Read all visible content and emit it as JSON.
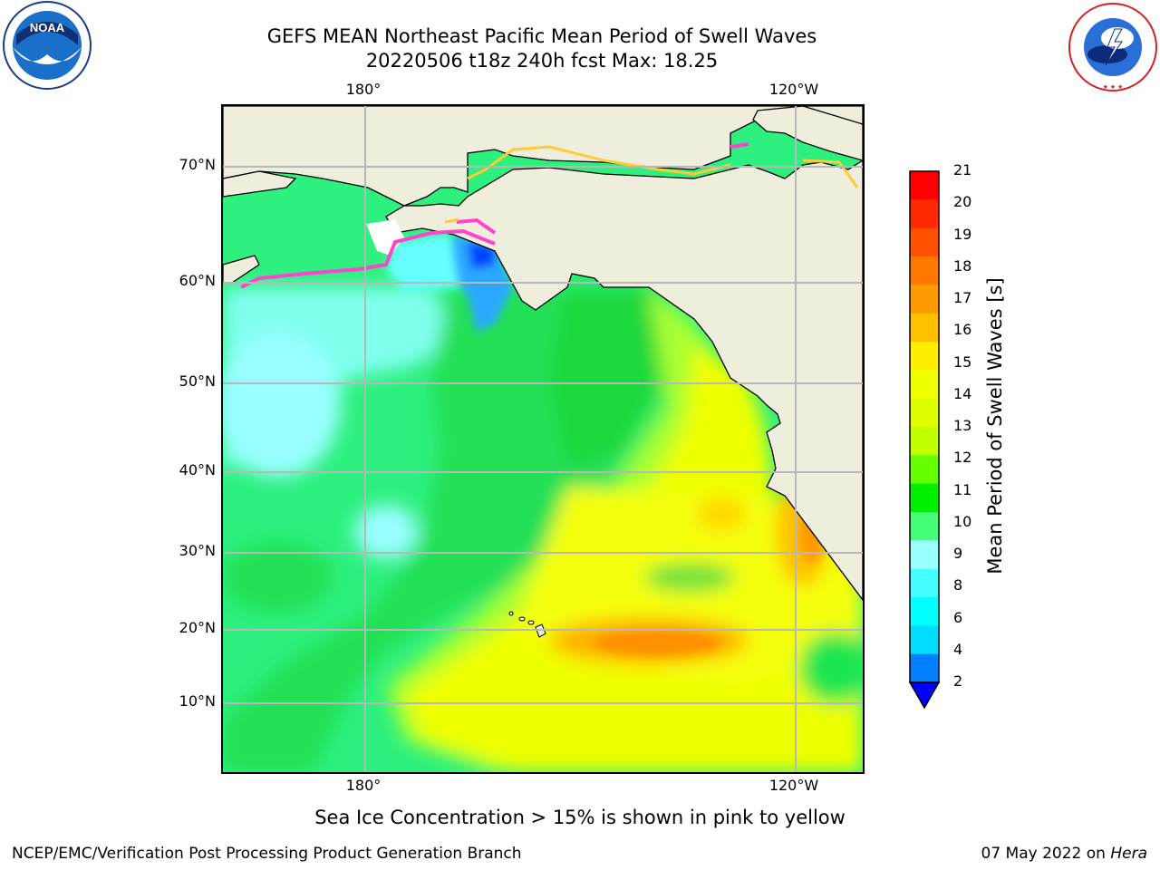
{
  "title": {
    "line1": "GEFS MEAN Northeast Pacific Mean Period of Swell Waves",
    "line2": "20220506 t18z 240h fcst   Max: 18.25"
  },
  "map": {
    "lon_labels": [
      "180°",
      "120°W"
    ],
    "lat_labels": [
      "70°N",
      "60°N",
      "50°N",
      "40°N",
      "30°N",
      "20°N",
      "10°N"
    ],
    "land_color": "#efeedd",
    "grid_color": "#b8b8b8"
  },
  "colorbar": {
    "label": "Mean Period of Swell Waves [s]",
    "ticks": [
      "21",
      "20",
      "19",
      "18",
      "17",
      "16",
      "15",
      "14",
      "13",
      "12",
      "11",
      "10",
      "9",
      "8",
      "6",
      "4",
      "2"
    ],
    "colors_top_to_bottom": [
      "#ff0000",
      "#ff2800",
      "#ff5000",
      "#ff7800",
      "#ff9a00",
      "#ffc000",
      "#ffee00",
      "#f0ff00",
      "#ddff00",
      "#c0ff00",
      "#66ff00",
      "#00ee00",
      "#44ff77",
      "#99ffff",
      "#44ffff",
      "#00ffff",
      "#00ddff",
      "#0080ff",
      "#0000ff"
    ]
  },
  "footnote": "Sea Ice Concentration > 15% is shown in pink to yellow",
  "credit_left": "NCEP/EMC/Verification Post Processing Product Generation Branch",
  "credit_right_date": "07 May 2022 on",
  "credit_right_host": "Hera",
  "logos": {
    "noaa": "NOAA",
    "noaa_ring": "NATIONAL OCEANIC AND ATMOSPHERIC ADMINISTRATION · U.S. DEPARTMENT OF COMMERCE",
    "nws_ring": "NATIONAL WEATHER SERVICE"
  }
}
